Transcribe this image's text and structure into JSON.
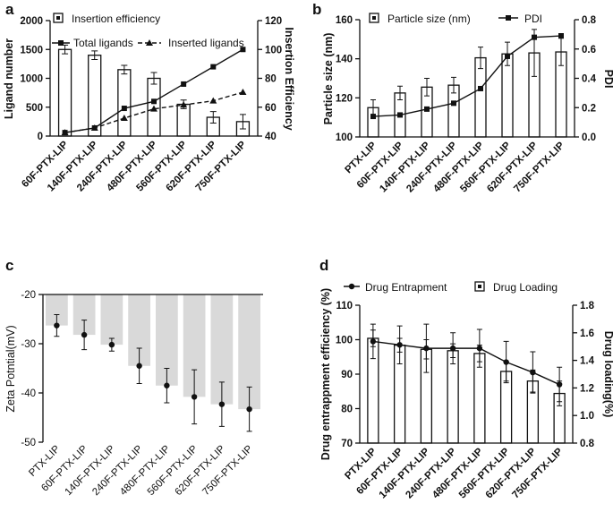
{
  "chart_data": [
    {
      "id": "a",
      "panel_label": "a",
      "type": "bar",
      "categories": [
        "60F-PTX-LIP",
        "140F-PTX-LIP",
        "240F-PTX-LIP",
        "480F-PTX-LIP",
        "560F-PTX-LIP",
        "620F-PTX-LIP",
        "750F-PTX-LIP"
      ],
      "ylabel": "Ligand number",
      "ylabel_right": "Insertion Efficiency",
      "ylim": [
        0,
        2000
      ],
      "yticks": [
        0,
        500,
        1000,
        1500,
        2000
      ],
      "ylim_right": [
        40,
        120
      ],
      "yticks_right": [
        40,
        60,
        80,
        100,
        120
      ],
      "legend": [
        "Insertion efficiency",
        "Total ligands",
        "Inserted ligands"
      ],
      "series": [
        {
          "name": "Insertion efficiency",
          "kind": "bar",
          "axis": "right",
          "values": [
            100,
            96,
            86,
            80,
            62,
            53,
            50
          ],
          "errors": [
            3,
            3,
            3,
            4,
            3,
            4,
            5
          ]
        },
        {
          "name": "Total ligands",
          "kind": "line",
          "marker": "square",
          "axis": "left",
          "values": [
            60,
            140,
            480,
            600,
            900,
            1200,
            1500
          ]
        },
        {
          "name": "Inserted ligands",
          "kind": "line-dashed",
          "marker": "triangle",
          "axis": "left",
          "values": [
            60,
            140,
            310,
            470,
            540,
            610,
            760
          ]
        }
      ]
    },
    {
      "id": "b",
      "panel_label": "b",
      "type": "bar",
      "categories": [
        "PTX-LIP",
        "60F-PTX-LIP",
        "140F-PTX-LIP",
        "240F-PTX-LIP",
        "480F-PTX-LIP",
        "560F-PTX-LIP",
        "620F-PTX-LIP",
        "750F-PTX-LIP"
      ],
      "ylabel": "Particle size (nm)",
      "ylabel_right": "PDI",
      "ylim": [
        100,
        160
      ],
      "yticks": [
        100,
        120,
        140,
        160
      ],
      "ylim_right": [
        0,
        0.8
      ],
      "yticks_right": [
        "0.0",
        "0.2",
        "0.4",
        "0.6",
        "0.8"
      ],
      "legend": [
        "Particle size (nm)",
        "PDI"
      ],
      "series": [
        {
          "name": "Particle size (nm)",
          "kind": "bar",
          "axis": "left",
          "values": [
            115,
            122.5,
            125.5,
            126.5,
            140.5,
            142.5,
            143,
            143.5
          ],
          "errors": [
            4,
            3.5,
            4.5,
            4,
            5.5,
            6,
            12,
            7
          ]
        },
        {
          "name": "PDI",
          "kind": "line",
          "marker": "square",
          "axis": "right",
          "values": [
            0.14,
            0.15,
            0.19,
            0.23,
            0.33,
            0.55,
            0.68,
            0.69
          ]
        }
      ]
    },
    {
      "id": "c",
      "panel_label": "c",
      "type": "bar",
      "categories": [
        "PTX-LIP",
        "60F-PTX-LIP",
        "140F-PTX-LIP",
        "240F-PTX-LIP",
        "480F-PTX-LIP",
        "560F-PTX-LIP",
        "620F-PTX-LIP",
        "750F-PTX-LIP"
      ],
      "ylabel": "Zeta Potntial(mV)",
      "ylim": [
        -50,
        -20
      ],
      "yticks": [
        -20,
        -30,
        -40,
        -50
      ],
      "series": [
        {
          "name": "Zeta potential",
          "kind": "bar",
          "values": [
            -26.3,
            -28.2,
            -30.2,
            -34.5,
            -38.5,
            -40.8,
            -42.3,
            -43.3
          ],
          "errors": [
            2.2,
            3,
            1.3,
            3.6,
            3.5,
            5.5,
            4.5,
            4.5
          ]
        }
      ]
    },
    {
      "id": "d",
      "panel_label": "d",
      "type": "bar",
      "categories": [
        "PTX-LIP",
        "60F-PTX-LIP",
        "140F-PTX-LIP",
        "240F-PTX-LIP",
        "480F-PTX-LIP",
        "560F-PTX-LIP",
        "620F-PTX-LIP",
        "750F-PTX-LIP"
      ],
      "ylabel": "Drug entrappment efficiency (%)",
      "ylabel_right": "Drug loading(%)",
      "ylim": [
        70,
        110
      ],
      "yticks": [
        70,
        80,
        90,
        100,
        110
      ],
      "ylim_right": [
        0.8,
        1.8
      ],
      "yticks_right": [
        "0.8",
        "1.0",
        "1.2",
        "1.4",
        "1.6",
        "1.8"
      ],
      "legend": [
        "Drug  Entrapment",
        "Drug Loading"
      ],
      "series": [
        {
          "name": "Drug Loading",
          "kind": "bar",
          "axis": "right",
          "values": [
            1.56,
            1.51,
            1.48,
            1.47,
            1.45,
            1.32,
            1.25,
            1.16
          ],
          "errors": [
            0.06,
            0.05,
            0.07,
            0.05,
            0.06,
            0.07,
            0.08,
            0.09
          ]
        },
        {
          "name": "Drug  Entrapment",
          "kind": "line",
          "marker": "circle",
          "axis": "left",
          "values": [
            99.5,
            98.5,
            97.5,
            97.5,
            97.5,
            93.5,
            90.5,
            87
          ],
          "errors": [
            5,
            5.5,
            7,
            4.5,
            5.5,
            6,
            6,
            5
          ]
        }
      ]
    }
  ]
}
